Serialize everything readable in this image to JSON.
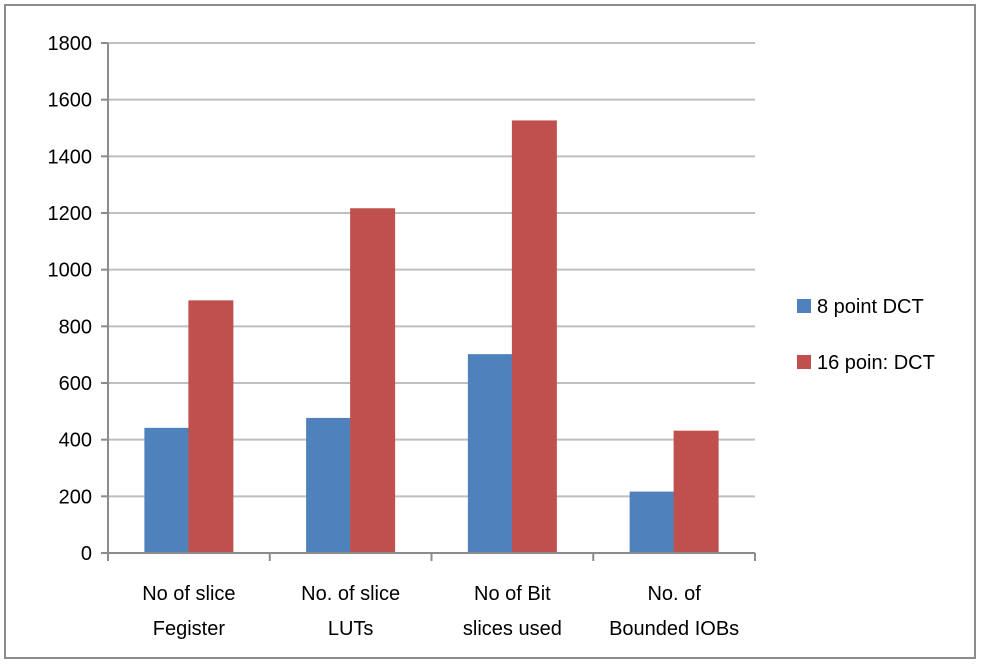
{
  "chart_data": {
    "type": "bar",
    "categories": [
      [
        "No of slice",
        "Fegister"
      ],
      [
        "No. of slice",
        "LUTs"
      ],
      [
        "No of Bit",
        "slices used"
      ],
      [
        "No. of",
        "Bounded IOBs"
      ]
    ],
    "series": [
      {
        "name": "8 point DCT",
        "color": "#4f81bd",
        "values": [
          440,
          475,
          700,
          215
        ]
      },
      {
        "name": "16 poin: DCT",
        "color": "#c0504d",
        "values": [
          890,
          1215,
          1525,
          430
        ]
      }
    ],
    "ylim": [
      0,
      1800
    ],
    "yticks": [
      0,
      200,
      400,
      600,
      800,
      1000,
      1200,
      1400,
      1600,
      1800
    ],
    "grid": true,
    "legend_position": "right",
    "title": "",
    "xlabel": "",
    "ylabel": ""
  }
}
